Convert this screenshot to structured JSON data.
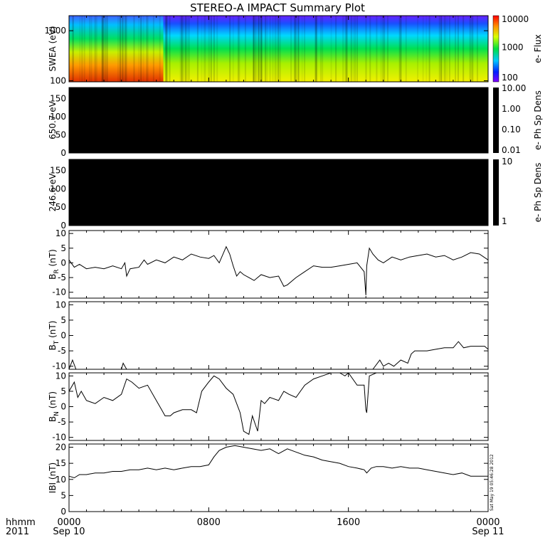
{
  "chart_data": {
    "type": "line",
    "title": "STEREO-A IMPACT Summary Plot",
    "timestamp_note": "Sat May 19 05:46:28 2012",
    "x_axis": {
      "unit_label": "hhmm",
      "year_label": "2011",
      "ticks": [
        {
          "value": 0,
          "label": "0000",
          "date": "Sep 10"
        },
        {
          "value": 8,
          "label": "0800",
          "date": ""
        },
        {
          "value": 16,
          "label": "1600",
          "date": ""
        },
        {
          "value": 24,
          "label": "0000",
          "date": "Sep 11"
        }
      ],
      "range_hours": [
        0,
        24
      ]
    },
    "panels": [
      {
        "id": "swea",
        "kind": "spectrogram",
        "ylabel": "SWEA (eV)",
        "ylog": true,
        "ylim": [
          95,
          2000
        ],
        "yticks": [
          {
            "value": 100,
            "label": "100"
          },
          {
            "value": 1000,
            "label": "1000"
          }
        ],
        "colorbar": {
          "label": "e- Flux",
          "ticks": [
            "10000",
            "1000",
            "100"
          ],
          "scale": "rainbow"
        },
        "description_bands": [
          {
            "from_hour": 0,
            "to_hour": 5.4,
            "low_energy_color": "#e34a00"
          },
          {
            "from_hour": 5.4,
            "to_hour": 24,
            "low_energy_color": "#e6e600"
          }
        ]
      },
      {
        "id": "pad650",
        "kind": "image",
        "ylabel": "650.7 eV",
        "yticks": [
          {
            "value": 0,
            "label": "0"
          },
          {
            "value": 50,
            "label": "50"
          },
          {
            "value": 100,
            "label": "100"
          },
          {
            "value": 150,
            "label": "150"
          }
        ],
        "ylim": [
          0,
          180
        ],
        "colorbar": {
          "label": "e- Ph Sp Dens",
          "ticks": [
            "10.00",
            "1.00",
            "0.10",
            "0.01"
          ]
        }
      },
      {
        "id": "pad246",
        "kind": "image",
        "ylabel": "246.6 eV",
        "yticks": [
          {
            "value": 0,
            "label": "0"
          },
          {
            "value": 50,
            "label": "50"
          },
          {
            "value": 100,
            "label": "100"
          },
          {
            "value": 150,
            "label": "150"
          }
        ],
        "ylim": [
          0,
          180
        ],
        "colorbar": {
          "label": "e- Ph Sp Dens",
          "ticks": [
            "10",
            "1"
          ]
        }
      },
      {
        "id": "br",
        "kind": "line",
        "ylabel": "B",
        "ylabel_sub": "R",
        "ylabel_unit": "(nT)",
        "ylim": [
          -12,
          11
        ],
        "yticks": [
          {
            "value": 10,
            "label": "10"
          },
          {
            "value": 5,
            "label": "5"
          },
          {
            "value": 0,
            "label": "0"
          },
          {
            "value": -5,
            "label": "-5"
          },
          {
            "value": -10,
            "label": "-10"
          }
        ],
        "series": [
          {
            "x": [
              0,
              0.3,
              0.6,
              1.0,
              1.5,
              2.0,
              2.5,
              3.0,
              3.2,
              3.3,
              3.5,
              4.0,
              4.3,
              4.5,
              5.0,
              5.5,
              6.0,
              6.5,
              7.0,
              7.5,
              8.0,
              8.3,
              8.6,
              9.0,
              9.2,
              9.4,
              9.6,
              9.8,
              10.0,
              10.3,
              10.6,
              11.0,
              11.5,
              12.0,
              12.3,
              12.5,
              12.8,
              13.0,
              13.5,
              14.0,
              14.5,
              15.0,
              15.5,
              16.0,
              16.5,
              16.9,
              17.0,
              17.05,
              17.2,
              17.4,
              17.7,
              18.0,
              18.5,
              19.0,
              19.5,
              20.0,
              20.5,
              21.0,
              21.5,
              22.0,
              22.5,
              23.0,
              23.5,
              24.0
            ],
            "y": [
              1,
              -1.5,
              -0.5,
              -2,
              -1.5,
              -2,
              -1,
              -2,
              0,
              -4.5,
              -2,
              -1.5,
              1,
              -0.5,
              1,
              0,
              2,
              1,
              3,
              2,
              1.5,
              2.5,
              0,
              5.5,
              3,
              -1,
              -4.5,
              -3,
              -4,
              -5,
              -6,
              -4,
              -5,
              -4.5,
              -8,
              -7.5,
              -6,
              -5,
              -3,
              -1,
              -1.5,
              -1.5,
              -1,
              -0.5,
              0,
              -3,
              -11,
              -1,
              5,
              3,
              1,
              0,
              2,
              1,
              2,
              2.5,
              3,
              2,
              2.5,
              1,
              2,
              3.5,
              3,
              1
            ]
          }
        ]
      },
      {
        "id": "bt",
        "kind": "line",
        "ylabel": "B",
        "ylabel_sub": "T",
        "ylabel_unit": "(nT)",
        "ylim": [
          -11,
          11
        ],
        "yticks": [
          {
            "value": 10,
            "label": "10"
          },
          {
            "value": 5,
            "label": "5"
          },
          {
            "value": 0,
            "label": "0"
          },
          {
            "value": -5,
            "label": "-5"
          },
          {
            "value": -10,
            "label": "-10"
          }
        ],
        "series": [
          {
            "x": [
              0,
              0.2,
              0.4,
              0.5,
              3.0,
              3.1,
              3.2,
              3.3,
              17.4,
              17.8,
              18.0,
              18.3,
              18.6,
              19.0,
              19.4,
              19.6,
              19.8,
              20.0,
              20.5,
              21.0,
              21.5,
              22.0,
              22.3,
              22.6,
              23.0,
              23.5,
              23.8,
              24.0
            ],
            "y": [
              -11,
              -8,
              -11,
              -11,
              -11,
              -9,
              -10,
              -11,
              -11,
              -8,
              -10,
              -9,
              -10,
              -8,
              -9,
              -6,
              -5,
              -5,
              -5,
              -4.5,
              -4,
              -4,
              -2,
              -4,
              -3.5,
              -3.5,
              -3.5,
              -4.5
            ]
          }
        ]
      },
      {
        "id": "bn",
        "kind": "line",
        "ylabel": "B",
        "ylabel_sub": "N",
        "ylabel_unit": "(nT)",
        "ylim": [
          -11,
          11
        ],
        "yticks": [
          {
            "value": 10,
            "label": "10"
          },
          {
            "value": 5,
            "label": "5"
          },
          {
            "value": 0,
            "label": "0"
          },
          {
            "value": -5,
            "label": "-5"
          },
          {
            "value": -10,
            "label": "-10"
          }
        ],
        "series": [
          {
            "x": [
              0,
              0.3,
              0.5,
              0.7,
              1.0,
              1.5,
              2.0,
              2.5,
              3.0,
              3.3,
              3.6,
              4.0,
              4.5,
              5.0,
              5.3,
              5.5,
              5.8,
              6.0,
              6.5,
              7.0,
              7.3,
              7.6,
              8.0,
              8.3,
              8.6,
              9.0,
              9.4,
              9.8,
              10.0,
              10.3,
              10.5,
              10.8,
              11.0,
              11.2,
              11.5,
              12.0,
              12.3,
              12.6,
              13.0,
              13.5,
              14.0,
              14.5,
              15.0,
              15.5,
              15.8,
              16.0,
              16.5,
              16.9,
              17.0,
              17.05,
              17.2,
              17.6
            ],
            "y": [
              5,
              8,
              3,
              5,
              2,
              1,
              3,
              2,
              4,
              9,
              8,
              6,
              7,
              2,
              -1,
              -3,
              -3,
              -2,
              -1,
              -1,
              -2,
              5,
              8,
              10,
              9,
              6,
              4,
              -2,
              -8,
              -9,
              -3,
              -8,
              2,
              1,
              3,
              2,
              5,
              4,
              3,
              7,
              9,
              10,
              11,
              11,
              10,
              11,
              7,
              7,
              -1,
              -2,
              10,
              11
            ]
          }
        ]
      },
      {
        "id": "bmag",
        "kind": "line",
        "ylabel": "IBI (nT)",
        "ylim": [
          0,
          21
        ],
        "yticks": [
          {
            "value": 0,
            "label": "0"
          },
          {
            "value": 5,
            "label": "5"
          },
          {
            "value": 10,
            "label": "10"
          },
          {
            "value": 15,
            "label": "15"
          },
          {
            "value": 20,
            "label": "20"
          }
        ],
        "series": [
          {
            "x": [
              0,
              0.3,
              0.6,
              1.0,
              1.5,
              2.0,
              2.5,
              3.0,
              3.5,
              4.0,
              4.5,
              5.0,
              5.5,
              6.0,
              6.5,
              7.0,
              7.5,
              8.0,
              8.3,
              8.6,
              9.0,
              9.5,
              10.0,
              10.5,
              11.0,
              11.5,
              12.0,
              12.5,
              13.0,
              13.5,
              14.0,
              14.5,
              15.0,
              15.5,
              16.0,
              16.5,
              16.9,
              17.05,
              17.3,
              17.6,
              18.0,
              18.5,
              19.0,
              19.5,
              20.0,
              20.5,
              21.0,
              21.5,
              22.0,
              22.5,
              23.0,
              23.5,
              24.0
            ],
            "y": [
              11,
              10.5,
              11.5,
              11.5,
              12,
              12,
              12.5,
              12.5,
              13,
              13,
              13.5,
              13,
              13.5,
              13,
              13.5,
              14,
              14,
              14.5,
              17,
              19,
              20,
              20.5,
              20,
              19.5,
              19,
              19.5,
              18,
              19.5,
              18.5,
              17.5,
              17,
              16,
              15.5,
              15,
              14,
              13.5,
              13,
              12,
              13.5,
              14,
              14,
              13.5,
              14,
              13.5,
              13.5,
              13,
              12.5,
              12,
              11.5,
              12,
              11,
              11,
              11
            ]
          }
        ]
      }
    ]
  }
}
